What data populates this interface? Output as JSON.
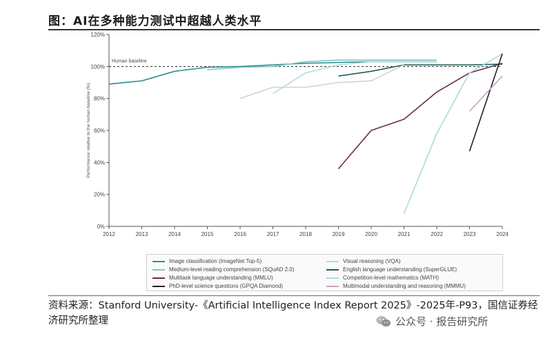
{
  "header": {
    "title": "图：AI在多种能力测试中超越人类水平"
  },
  "footer": {
    "source": "资料来源：Stanford University-《Artificial Intelligence Index Report 2025》-2025年-P93，国信证券经济研究所整理",
    "watermark": "公众号 · 报告研究所"
  },
  "chart_data": {
    "type": "line",
    "ylabel": "Performance relative to the human baseline (%)",
    "xlabel": "",
    "ylim": [
      0,
      120
    ],
    "yticks": [
      0,
      20,
      40,
      60,
      80,
      100,
      120
    ],
    "ytick_labels": [
      "0%",
      "20%",
      "40%",
      "60%",
      "80%",
      "100%",
      "120%"
    ],
    "xlim": [
      2012,
      2024
    ],
    "xticks": [
      "2012",
      "2013",
      "2014",
      "2015",
      "2016",
      "2017",
      "2018",
      "2019",
      "2020",
      "2021",
      "2022",
      "2023",
      "2024"
    ],
    "baseline": {
      "value": 100,
      "label": "Human baseline"
    },
    "grid": false,
    "legend_position": "bottom",
    "series": [
      {
        "name": "Image classification (ImageNet Top-5)",
        "color": "#2e8f8a",
        "points": [
          [
            2012,
            89
          ],
          [
            2013,
            91
          ],
          [
            2014,
            97
          ],
          [
            2015,
            99.5
          ],
          [
            2016,
            100
          ],
          [
            2017,
            101
          ],
          [
            2018,
            102
          ],
          [
            2019,
            102.5
          ],
          [
            2020,
            103
          ],
          [
            2021,
            103
          ],
          [
            2022,
            103
          ]
        ]
      },
      {
        "name": "Visual reasoning (VQA)",
        "color": "#b3dbe0",
        "points": [
          [
            2017,
            83
          ],
          [
            2018,
            96
          ],
          [
            2019,
            101
          ],
          [
            2020,
            103
          ],
          [
            2021,
            103
          ],
          [
            2022,
            103
          ]
        ]
      },
      {
        "name": "Medium-level reading comprehension (SQuAD 2.0)",
        "color": "#7ec5c8",
        "points": [
          [
            2015,
            98
          ],
          [
            2016,
            99.5
          ],
          [
            2017,
            100
          ],
          [
            2018,
            103
          ],
          [
            2019,
            104
          ],
          [
            2020,
            104
          ],
          [
            2021,
            104
          ],
          [
            2022,
            104
          ]
        ]
      },
      {
        "name": "English language understanding (SuperGLUE)",
        "color": "#1c5c5a",
        "points": [
          [
            2019,
            94
          ],
          [
            2020,
            97
          ],
          [
            2021,
            101
          ],
          [
            2022,
            101
          ],
          [
            2023,
            101
          ],
          [
            2024,
            101.5
          ]
        ]
      },
      {
        "name": "Multitask language understanding (MMLU)",
        "color": "#6b2a4a",
        "points": [
          [
            2019,
            36
          ],
          [
            2020,
            60
          ],
          [
            2021,
            67
          ],
          [
            2022,
            84
          ],
          [
            2023,
            96
          ],
          [
            2024,
            102
          ]
        ]
      },
      {
        "name": "Competition-level mathematics (MATH)",
        "color": "#a6dcdc",
        "points": [
          [
            2021,
            8
          ],
          [
            2022,
            58
          ],
          [
            2023,
            96
          ],
          [
            2024,
            108
          ]
        ]
      },
      {
        "name": "PhD-level science questions (GPQA Diamond)",
        "color": "#2b1a2e",
        "points": [
          [
            2023,
            47
          ],
          [
            2024,
            108
          ]
        ]
      },
      {
        "name": "Multimodal understanding and reasoning (MMMU)",
        "color": "#c9a3c4",
        "points": [
          [
            2023,
            72
          ],
          [
            2024,
            94
          ]
        ]
      },
      {
        "name": "",
        "color": "#d2d2d2",
        "points": [
          [
            2016,
            80
          ],
          [
            2017,
            87
          ],
          [
            2018,
            87
          ],
          [
            2019,
            90
          ],
          [
            2020,
            91
          ],
          [
            2021,
            101
          ]
        ]
      }
    ]
  }
}
